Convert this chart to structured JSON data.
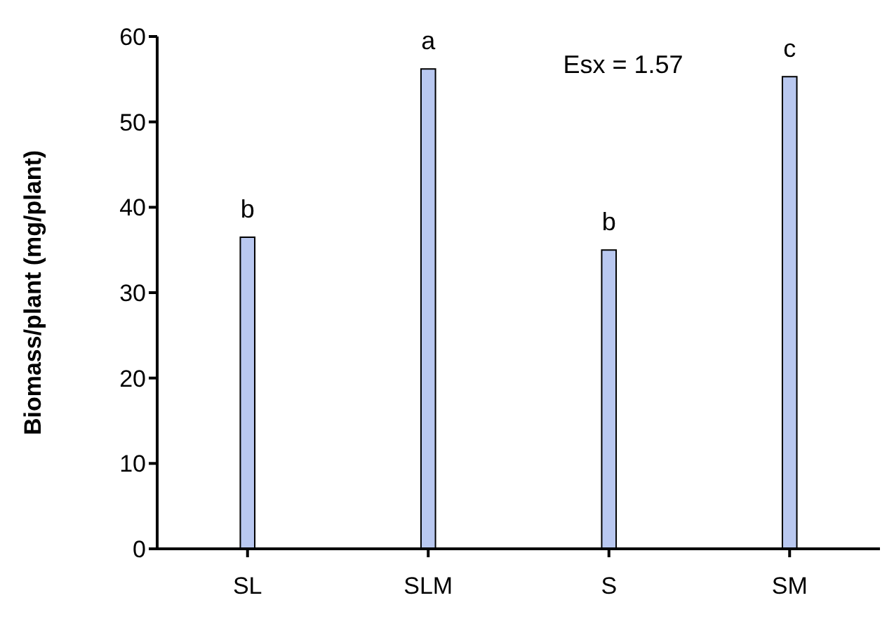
{
  "chart_data": {
    "type": "bar",
    "ylabel": "Biomass/plant (mg/plant)",
    "categories": [
      "SL",
      "SLM",
      "S",
      "SM"
    ],
    "values": [
      36.5,
      56.2,
      35.0,
      55.3
    ],
    "color": "#b9c8f0",
    "ylim": [
      0,
      60
    ],
    "yticks": [
      0,
      10,
      20,
      30,
      40,
      50,
      60
    ],
    "grid": false,
    "legend": false,
    "annotations": [
      {
        "text": "b",
        "x": "SL",
        "y": 36.5
      },
      {
        "text": "a",
        "x": "SLM",
        "y": 56.2
      },
      {
        "text": "b",
        "x": "S",
        "y": 35.0
      },
      {
        "text": "c",
        "x": "SM",
        "y": 55.3
      },
      "Esx = 1.57"
    ]
  }
}
